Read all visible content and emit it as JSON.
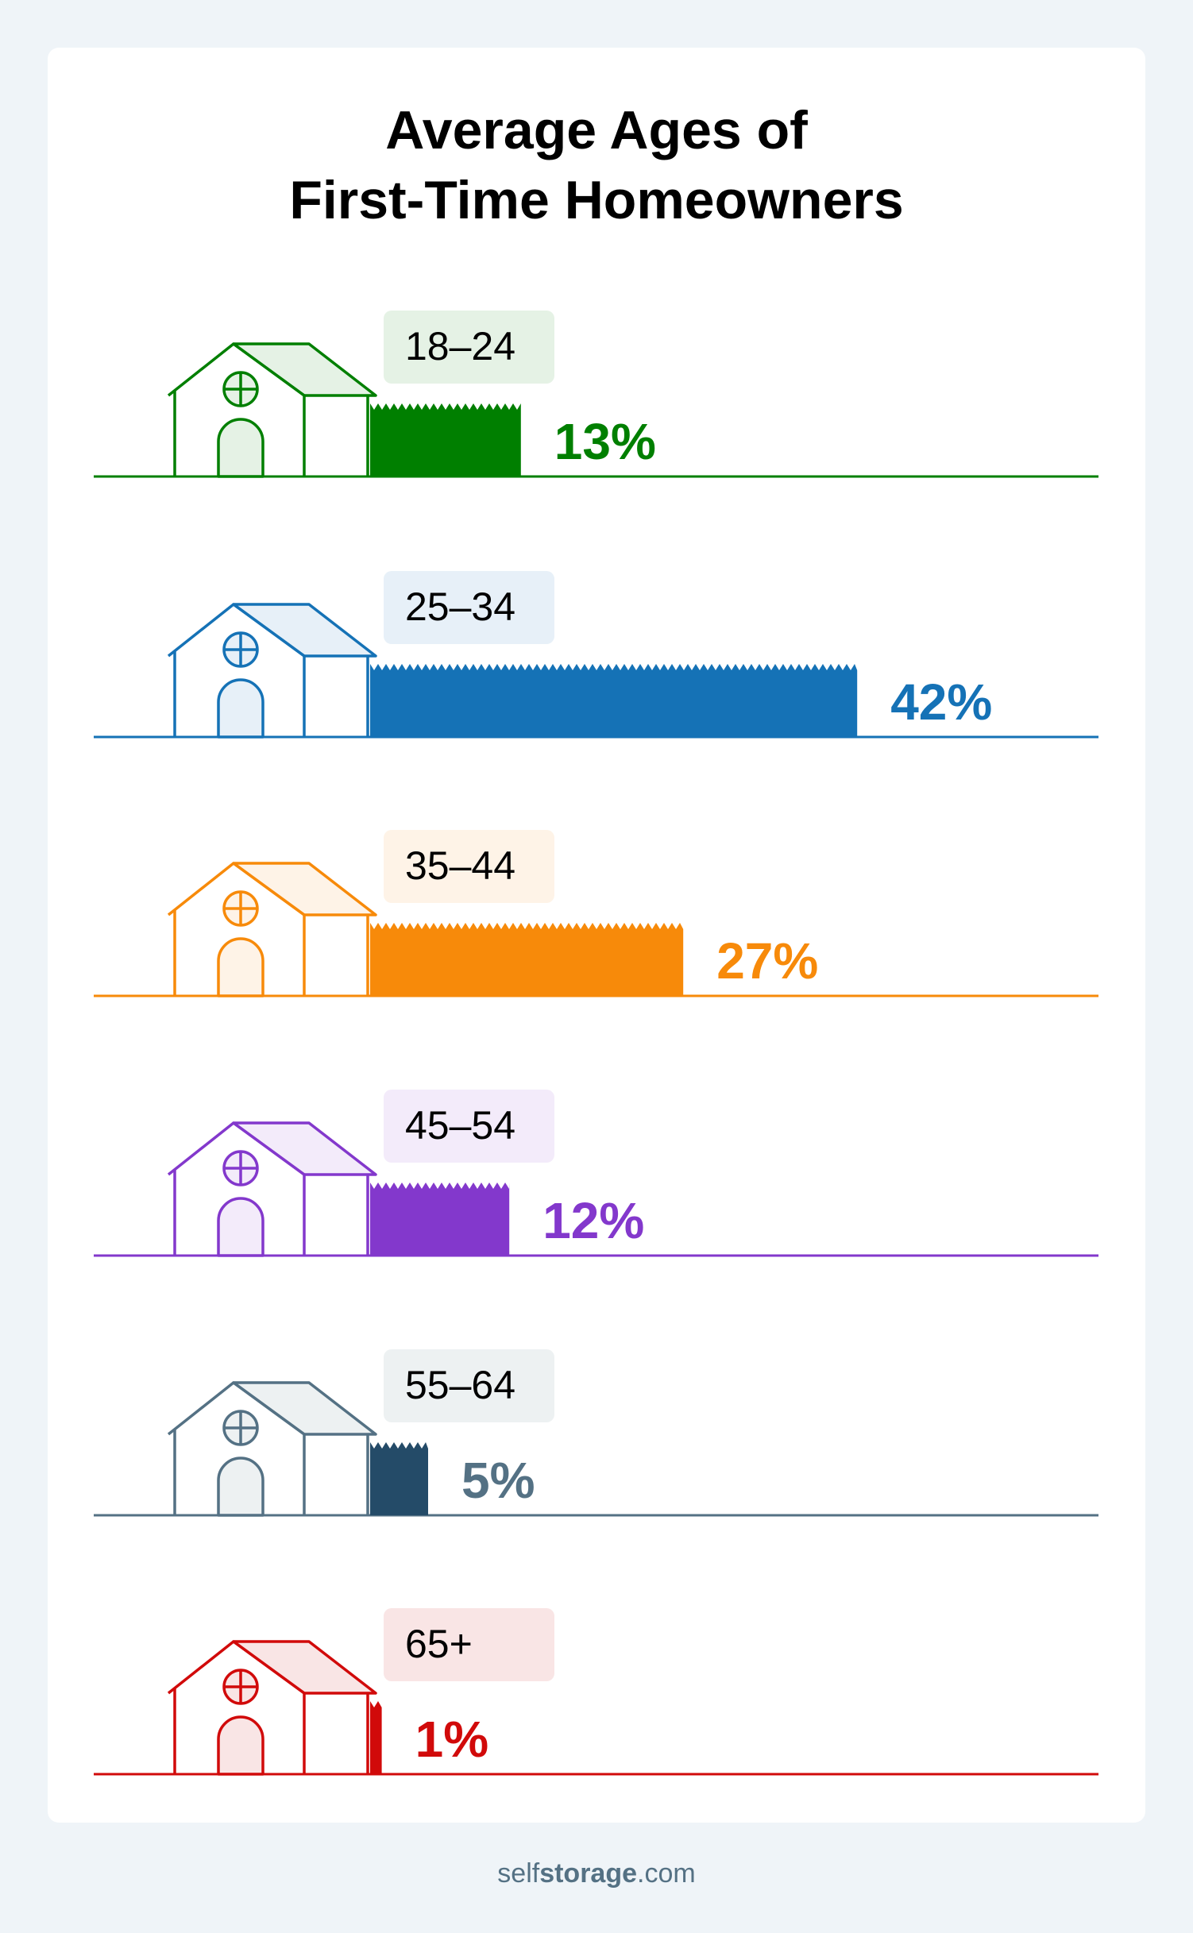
{
  "chart_data": {
    "type": "bar",
    "orientation": "horizontal",
    "title_lines": [
      "Average Ages of",
      "First-Time Homeowners"
    ],
    "categories": [
      "18–24",
      "25–34",
      "35–44",
      "45–54",
      "55–64",
      "65+"
    ],
    "values": [
      13,
      42,
      27,
      12,
      5,
      1
    ],
    "value_labels": [
      "13%",
      "42%",
      "27%",
      "12%",
      "5%",
      "1%"
    ],
    "unit": "%",
    "colors": [
      {
        "line": "#007f00",
        "bar": "#007f00",
        "text": "#007f00",
        "tint": "#e5f2e5"
      },
      {
        "line": "#1572b6",
        "bar": "#1572b6",
        "text": "#1572b6",
        "tint": "#e7f0f8"
      },
      {
        "line": "#f78a0a",
        "bar": "#f78a0a",
        "text": "#f78a0a",
        "tint": "#fef3e7"
      },
      {
        "line": "#8338cc",
        "bar": "#8338cc",
        "text": "#8338cc",
        "tint": "#f3ebfa"
      },
      {
        "line": "#547184",
        "bar": "#244b68",
        "text": "#547184",
        "tint": "#edf1f2"
      },
      {
        "line": "#d10a0a",
        "bar": "#d10a0a",
        "text": "#d10a0a",
        "tint": "#f9e5e5"
      }
    ],
    "icon": "house-icon"
  },
  "footer": {
    "brand_light": "self",
    "brand_bold": "storage",
    "brand_tld": ".com"
  }
}
